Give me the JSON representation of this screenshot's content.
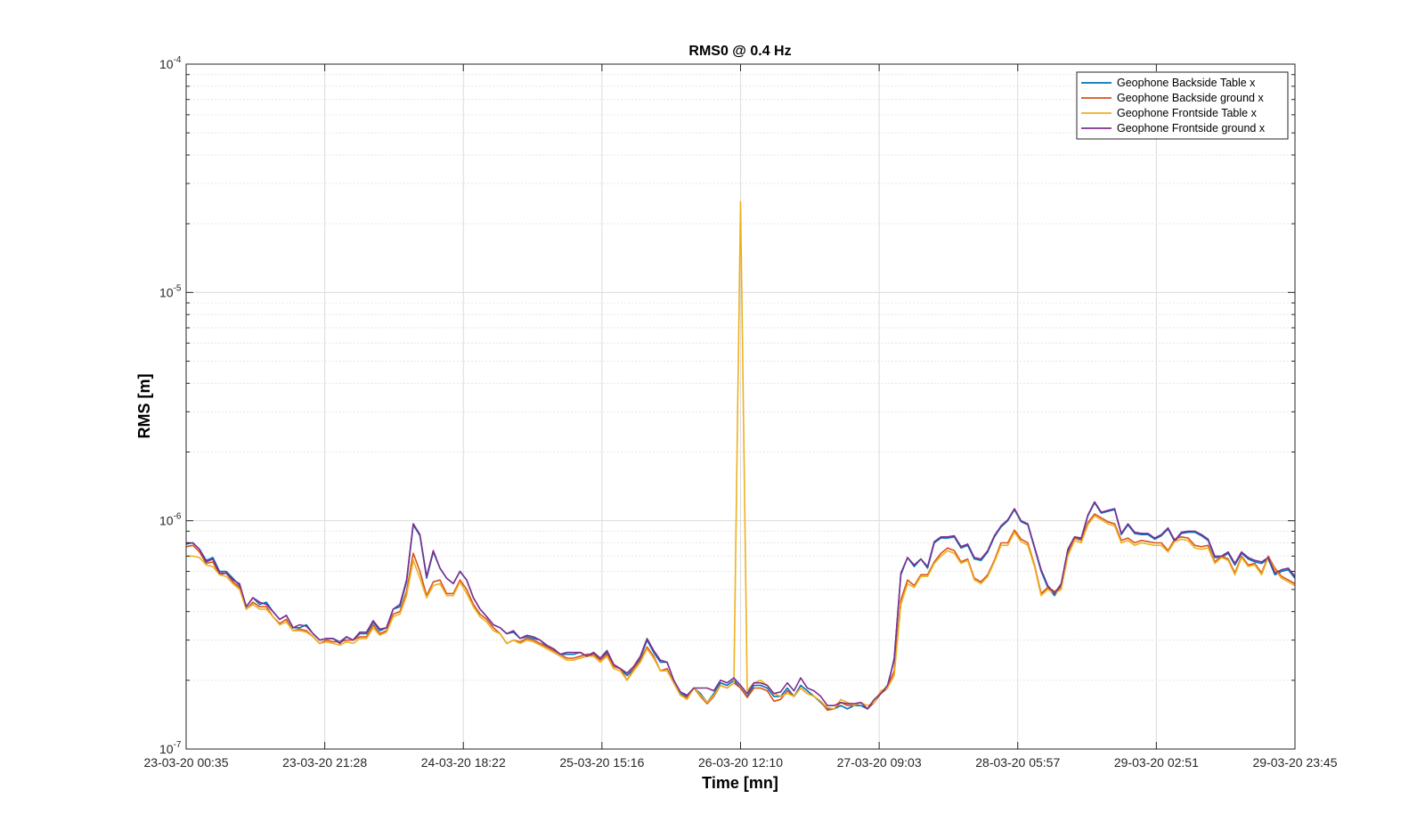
{
  "chart_data": {
    "type": "line",
    "title": "RMS0 @ 0.4 Hz",
    "xlabel": "Time [mn]",
    "ylabel": "RMS [m]",
    "y_scale": "log",
    "ylim": [
      1e-07,
      0.0001
    ],
    "y_ticks": [
      {
        "value": 1e-07,
        "base": "10",
        "exp": "-7"
      },
      {
        "value": 1e-06,
        "base": "10",
        "exp": "-6"
      },
      {
        "value": 1e-05,
        "base": "10",
        "exp": "-5"
      },
      {
        "value": 0.0001,
        "base": "10",
        "exp": "-4"
      }
    ],
    "x_tick_labels": [
      "23-03-20 00:35",
      "23-03-20 21:28",
      "24-03-20 18:22",
      "25-03-20 15:16",
      "26-03-20 12:10",
      "27-03-20 09:03",
      "28-03-20 05:57",
      "29-03-20 02:51",
      "29-03-20 23:45"
    ],
    "grid": true,
    "legend_position": "top-right",
    "series": [
      {
        "name": "Geophone Backside Table x",
        "color": "#0072BD",
        "values": [
          7.9e-07,
          8e-07,
          7.5e-07,
          6.7e-07,
          6.9e-07,
          6e-07,
          6e-07,
          5.6e-07,
          5.2e-07,
          4.2e-07,
          4.6e-07,
          4.3e-07,
          4.4e-07,
          4e-07,
          3.7e-07,
          3.85e-07,
          3.4e-07,
          3.4e-07,
          3.5e-07,
          3.2e-07,
          3e-07,
          3.05e-07,
          3.05e-07,
          2.95e-07,
          3.1e-07,
          3e-07,
          3.2e-07,
          3.2e-07,
          3.6e-07,
          3.3e-07,
          3.4e-07,
          4.1e-07,
          4.2e-07,
          5.4e-07,
          9.6e-07,
          8.6e-07,
          5.6e-07,
          7.3e-07,
          6.2e-07,
          5.6e-07,
          5.3e-07,
          6e-07,
          5.5e-07,
          4.6e-07,
          4.1e-07,
          3.8e-07,
          3.5e-07,
          3.4e-07,
          3.2e-07,
          3.25e-07,
          3.05e-07,
          3.1e-07,
          3.05e-07,
          3e-07,
          2.8e-07,
          2.75e-07,
          2.6e-07,
          2.6e-07,
          2.6e-07,
          2.65e-07,
          2.55e-07,
          2.6e-07,
          2.5e-07,
          2.65e-07,
          2.3e-07,
          2.25e-07,
          2.1e-07,
          2.25e-07,
          2.5e-07,
          3e-07,
          2.65e-07,
          2.4e-07,
          2.4e-07,
          2e-07,
          1.75e-07,
          1.7e-07,
          1.85e-07,
          1.75e-07,
          1.6e-07,
          1.75e-07,
          1.95e-07,
          1.9e-07,
          2e-07,
          1.85e-07,
          1.7e-07,
          1.9e-07,
          1.9e-07,
          1.85e-07,
          1.7e-07,
          1.7e-07,
          1.85e-07,
          1.7e-07,
          1.9e-07,
          1.8e-07,
          1.7e-07,
          1.6e-07,
          1.5e-07,
          1.5e-07,
          1.55e-07,
          1.5e-07,
          1.55e-07,
          1.55e-07,
          1.5e-07,
          1.6e-07,
          1.75e-07,
          1.85e-07,
          2.5e-07,
          5.8e-07,
          6.9e-07,
          6.3e-07,
          6.8e-07,
          6.2e-07,
          8e-07,
          8.4e-07,
          8.4e-07,
          8.5e-07,
          7.6e-07,
          7.8e-07,
          6.8e-07,
          6.7e-07,
          7.3e-07,
          8.5e-07,
          9.4e-07,
          1e-06,
          1.12e-06,
          9.9e-07,
          9.6e-07,
          7.6e-07,
          6e-07,
          5.1e-07,
          4.7e-07,
          5.2e-07,
          7.4e-07,
          8.4e-07,
          8.3e-07,
          1.05e-06,
          1.2e-06,
          1.08e-06,
          1.1e-06,
          1.12e-06,
          8.7e-07,
          9.6e-07,
          8.8e-07,
          8.7e-07,
          8.7e-07,
          8.3e-07,
          8.6e-07,
          9.2e-07,
          8.1e-07,
          8.8e-07,
          8.9e-07,
          8.9e-07,
          8.6e-07,
          8.2e-07,
          6.9e-07,
          6.9e-07,
          7.2e-07,
          6.4e-07,
          7.2e-07,
          6.8e-07,
          6.6e-07,
          6.5e-07,
          6.8e-07,
          5.8e-07,
          6e-07,
          6.1e-07,
          5.6e-07
        ]
      },
      {
        "name": "Geophone Backside ground x",
        "color": "#D95319",
        "values": [
          7.7e-07,
          7.8e-07,
          7.3e-07,
          6.5e-07,
          6.6e-07,
          5.8e-07,
          5.9e-07,
          5.4e-07,
          5.1e-07,
          4.1e-07,
          4.4e-07,
          4.2e-07,
          4.2e-07,
          3.8e-07,
          3.55e-07,
          3.7e-07,
          3.3e-07,
          3.35e-07,
          3.3e-07,
          3.1e-07,
          2.9e-07,
          3e-07,
          2.95e-07,
          2.95e-07,
          3e-07,
          3e-07,
          3.1e-07,
          3.1e-07,
          3.5e-07,
          3.2e-07,
          3.3e-07,
          3.9e-07,
          4e-07,
          4.9e-07,
          7.2e-07,
          6e-07,
          4.7e-07,
          5.4e-07,
          5.5e-07,
          4.8e-07,
          4.8e-07,
          5.5e-07,
          5e-07,
          4.3e-07,
          3.9e-07,
          3.7e-07,
          3.4e-07,
          3.2e-07,
          2.9e-07,
          3e-07,
          2.95e-07,
          3.05e-07,
          3e-07,
          2.9e-07,
          2.8e-07,
          2.7e-07,
          2.6e-07,
          2.5e-07,
          2.5e-07,
          2.55e-07,
          2.6e-07,
          2.6e-07,
          2.45e-07,
          2.6e-07,
          2.3e-07,
          2.25e-07,
          2e-07,
          2.25e-07,
          2.45e-07,
          2.8e-07,
          2.55e-07,
          2.2e-07,
          2.25e-07,
          1.95e-07,
          1.72e-07,
          1.68e-07,
          1.85e-07,
          1.7e-07,
          1.58e-07,
          1.7e-07,
          1.9e-07,
          1.85e-07,
          1.95e-07,
          1.85e-07,
          1.68e-07,
          1.85e-07,
          1.85e-07,
          1.8e-07,
          1.62e-07,
          1.65e-07,
          1.8e-07,
          1.7e-07,
          1.85e-07,
          1.75e-07,
          1.7e-07,
          1.62e-07,
          1.48e-07,
          1.5e-07,
          1.6e-07,
          1.55e-07,
          1.55e-07,
          1.6e-07,
          1.5e-07,
          1.6e-07,
          1.75e-07,
          1.85e-07,
          2.2e-07,
          4.5e-07,
          5.5e-07,
          5.2e-07,
          5.8e-07,
          5.8e-07,
          6.6e-07,
          7.2e-07,
          7.6e-07,
          7.4e-07,
          6.6e-07,
          6.8e-07,
          5.6e-07,
          5.4e-07,
          5.8e-07,
          6.7e-07,
          8e-07,
          8e-07,
          9.1e-07,
          8.3e-07,
          8e-07,
          6.4e-07,
          4.8e-07,
          5.1e-07,
          4.9e-07,
          5.1e-07,
          7.1e-07,
          8.4e-07,
          8.2e-07,
          9.8e-07,
          1.07e-06,
          1.03e-06,
          9.9e-07,
          9.7e-07,
          8.2e-07,
          8.4e-07,
          8e-07,
          8.2e-07,
          8.1e-07,
          8e-07,
          8e-07,
          7.4e-07,
          8.3e-07,
          8.5e-07,
          8.4e-07,
          7.8e-07,
          7.7e-07,
          7.8e-07,
          6.6e-07,
          7e-07,
          6.8e-07,
          5.9e-07,
          7e-07,
          6.4e-07,
          6.5e-07,
          5.9e-07,
          7e-07,
          6.2e-07,
          5.7e-07,
          5.5e-07,
          5.3e-07
        ]
      },
      {
        "name": "Geophone Frontside Table x",
        "color": "#EDB120",
        "values": [
          7e-07,
          7e-07,
          6.9e-07,
          6.4e-07,
          6.3e-07,
          5.8e-07,
          5.7e-07,
          5.3e-07,
          5e-07,
          4.1e-07,
          4.3e-07,
          4.1e-07,
          4.1e-07,
          3.8e-07,
          3.5e-07,
          3.6e-07,
          3.3e-07,
          3.3e-07,
          3.25e-07,
          3.1e-07,
          2.9e-07,
          2.95e-07,
          2.9e-07,
          2.85e-07,
          2.95e-07,
          2.9e-07,
          3.05e-07,
          3.05e-07,
          3.4e-07,
          3.15e-07,
          3.25e-07,
          3.8e-07,
          3.9e-07,
          4.7e-07,
          6.7e-07,
          5.6e-07,
          4.6e-07,
          5.2e-07,
          5.3e-07,
          4.7e-07,
          4.7e-07,
          5.4e-07,
          4.8e-07,
          4.2e-07,
          3.8e-07,
          3.6e-07,
          3.3e-07,
          3.2e-07,
          2.9e-07,
          3e-07,
          2.9e-07,
          3e-07,
          2.95e-07,
          2.85e-07,
          2.75e-07,
          2.65e-07,
          2.55e-07,
          2.45e-07,
          2.45e-07,
          2.5e-07,
          2.55e-07,
          2.55e-07,
          2.4e-07,
          2.55e-07,
          2.25e-07,
          2.2e-07,
          2e-07,
          2.2e-07,
          2.4e-07,
          2.75e-07,
          2.5e-07,
          2.2e-07,
          2.2e-07,
          1.95e-07,
          1.72e-07,
          1.65e-07,
          1.85e-07,
          1.72e-07,
          1.6e-07,
          1.72e-07,
          1.9e-07,
          1.85e-07,
          1.95e-07,
          2.5e-05,
          1.8e-07,
          1.95e-07,
          2e-07,
          1.9e-07,
          1.75e-07,
          1.7e-07,
          1.75e-07,
          1.7e-07,
          1.85e-07,
          1.75e-07,
          1.7e-07,
          1.62e-07,
          1.52e-07,
          1.5e-07,
          1.65e-07,
          1.6e-07,
          1.55e-07,
          1.6e-07,
          1.55e-07,
          1.6e-07,
          1.8e-07,
          1.85e-07,
          2.1e-07,
          4.3e-07,
          5.3e-07,
          5.1e-07,
          5.7e-07,
          5.7e-07,
          6.5e-07,
          7e-07,
          7.4e-07,
          7.2e-07,
          6.5e-07,
          6.7e-07,
          5.5e-07,
          5.3e-07,
          5.7e-07,
          6.6e-07,
          7.8e-07,
          7.8e-07,
          8.9e-07,
          8.1e-07,
          7.8e-07,
          6.3e-07,
          4.7e-07,
          5e-07,
          4.8e-07,
          5e-07,
          7e-07,
          8.2e-07,
          8e-07,
          9.6e-07,
          1.05e-06,
          1.01e-06,
          9.7e-07,
          9.5e-07,
          8e-07,
          8.2e-07,
          7.8e-07,
          8e-07,
          7.9e-07,
          7.8e-07,
          7.8e-07,
          7.3e-07,
          8.1e-07,
          8.3e-07,
          8.2e-07,
          7.6e-07,
          7.5e-07,
          7.6e-07,
          6.5e-07,
          6.9e-07,
          6.7e-07,
          5.8e-07,
          6.9e-07,
          6.3e-07,
          6.4e-07,
          5.8e-07,
          6.9e-07,
          6.1e-07,
          5.6e-07,
          5.4e-07,
          5.2e-07
        ]
      },
      {
        "name": "Geophone Frontside ground x",
        "color": "#7E2F8E",
        "values": [
          8e-07,
          8e-07,
          7.5e-07,
          6.6e-07,
          6.8e-07,
          5.9e-07,
          5.9e-07,
          5.5e-07,
          5.3e-07,
          4.2e-07,
          4.6e-07,
          4.4e-07,
          4.3e-07,
          4e-07,
          3.7e-07,
          3.85e-07,
          3.4e-07,
          3.5e-07,
          3.45e-07,
          3.2e-07,
          3e-07,
          3.05e-07,
          3.05e-07,
          2.9e-07,
          3.1e-07,
          3e-07,
          3.25e-07,
          3.25e-07,
          3.65e-07,
          3.35e-07,
          3.4e-07,
          4.1e-07,
          4.3e-07,
          5.5e-07,
          9.7e-07,
          8.7e-07,
          5.7e-07,
          7.4e-07,
          6.2e-07,
          5.6e-07,
          5.3e-07,
          6e-07,
          5.5e-07,
          4.6e-07,
          4.1e-07,
          3.8e-07,
          3.5e-07,
          3.4e-07,
          3.2e-07,
          3.3e-07,
          3.05e-07,
          3.15e-07,
          3.1e-07,
          3e-07,
          2.85e-07,
          2.75e-07,
          2.6e-07,
          2.65e-07,
          2.65e-07,
          2.65e-07,
          2.55e-07,
          2.65e-07,
          2.5e-07,
          2.7e-07,
          2.35e-07,
          2.25e-07,
          2.15e-07,
          2.3e-07,
          2.55e-07,
          3.05e-07,
          2.7e-07,
          2.45e-07,
          2.4e-07,
          2e-07,
          1.78e-07,
          1.72e-07,
          1.85e-07,
          1.85e-07,
          1.85e-07,
          1.8e-07,
          2e-07,
          1.95e-07,
          2.05e-07,
          1.9e-07,
          1.75e-07,
          1.95e-07,
          1.95e-07,
          1.9e-07,
          1.75e-07,
          1.78e-07,
          1.95e-07,
          1.8e-07,
          2.05e-07,
          1.85e-07,
          1.8e-07,
          1.7e-07,
          1.55e-07,
          1.55e-07,
          1.6e-07,
          1.58e-07,
          1.58e-07,
          1.6e-07,
          1.5e-07,
          1.65e-07,
          1.75e-07,
          1.9e-07,
          2.45e-07,
          5.9e-07,
          6.9e-07,
          6.4e-07,
          6.8e-07,
          6.3e-07,
          8.1e-07,
          8.5e-07,
          8.5e-07,
          8.6e-07,
          7.7e-07,
          7.9e-07,
          6.9e-07,
          6.8e-07,
          7.4e-07,
          8.6e-07,
          9.5e-07,
          1.01e-06,
          1.13e-06,
          1e-06,
          9.7e-07,
          7.7e-07,
          6.1e-07,
          5.2e-07,
          4.8e-07,
          5.3e-07,
          7.5e-07,
          8.5e-07,
          8.4e-07,
          1.06e-06,
          1.21e-06,
          1.09e-06,
          1.11e-06,
          1.13e-06,
          8.8e-07,
          9.7e-07,
          8.9e-07,
          8.8e-07,
          8.8e-07,
          8.4e-07,
          8.7e-07,
          9.3e-07,
          8.2e-07,
          8.9e-07,
          9e-07,
          9e-07,
          8.7e-07,
          8.3e-07,
          7e-07,
          7e-07,
          7.3e-07,
          6.5e-07,
          7.3e-07,
          6.9e-07,
          6.7e-07,
          6.6e-07,
          6.9e-07,
          5.9e-07,
          6.1e-07,
          6.2e-07,
          5.7e-07
        ]
      }
    ]
  }
}
